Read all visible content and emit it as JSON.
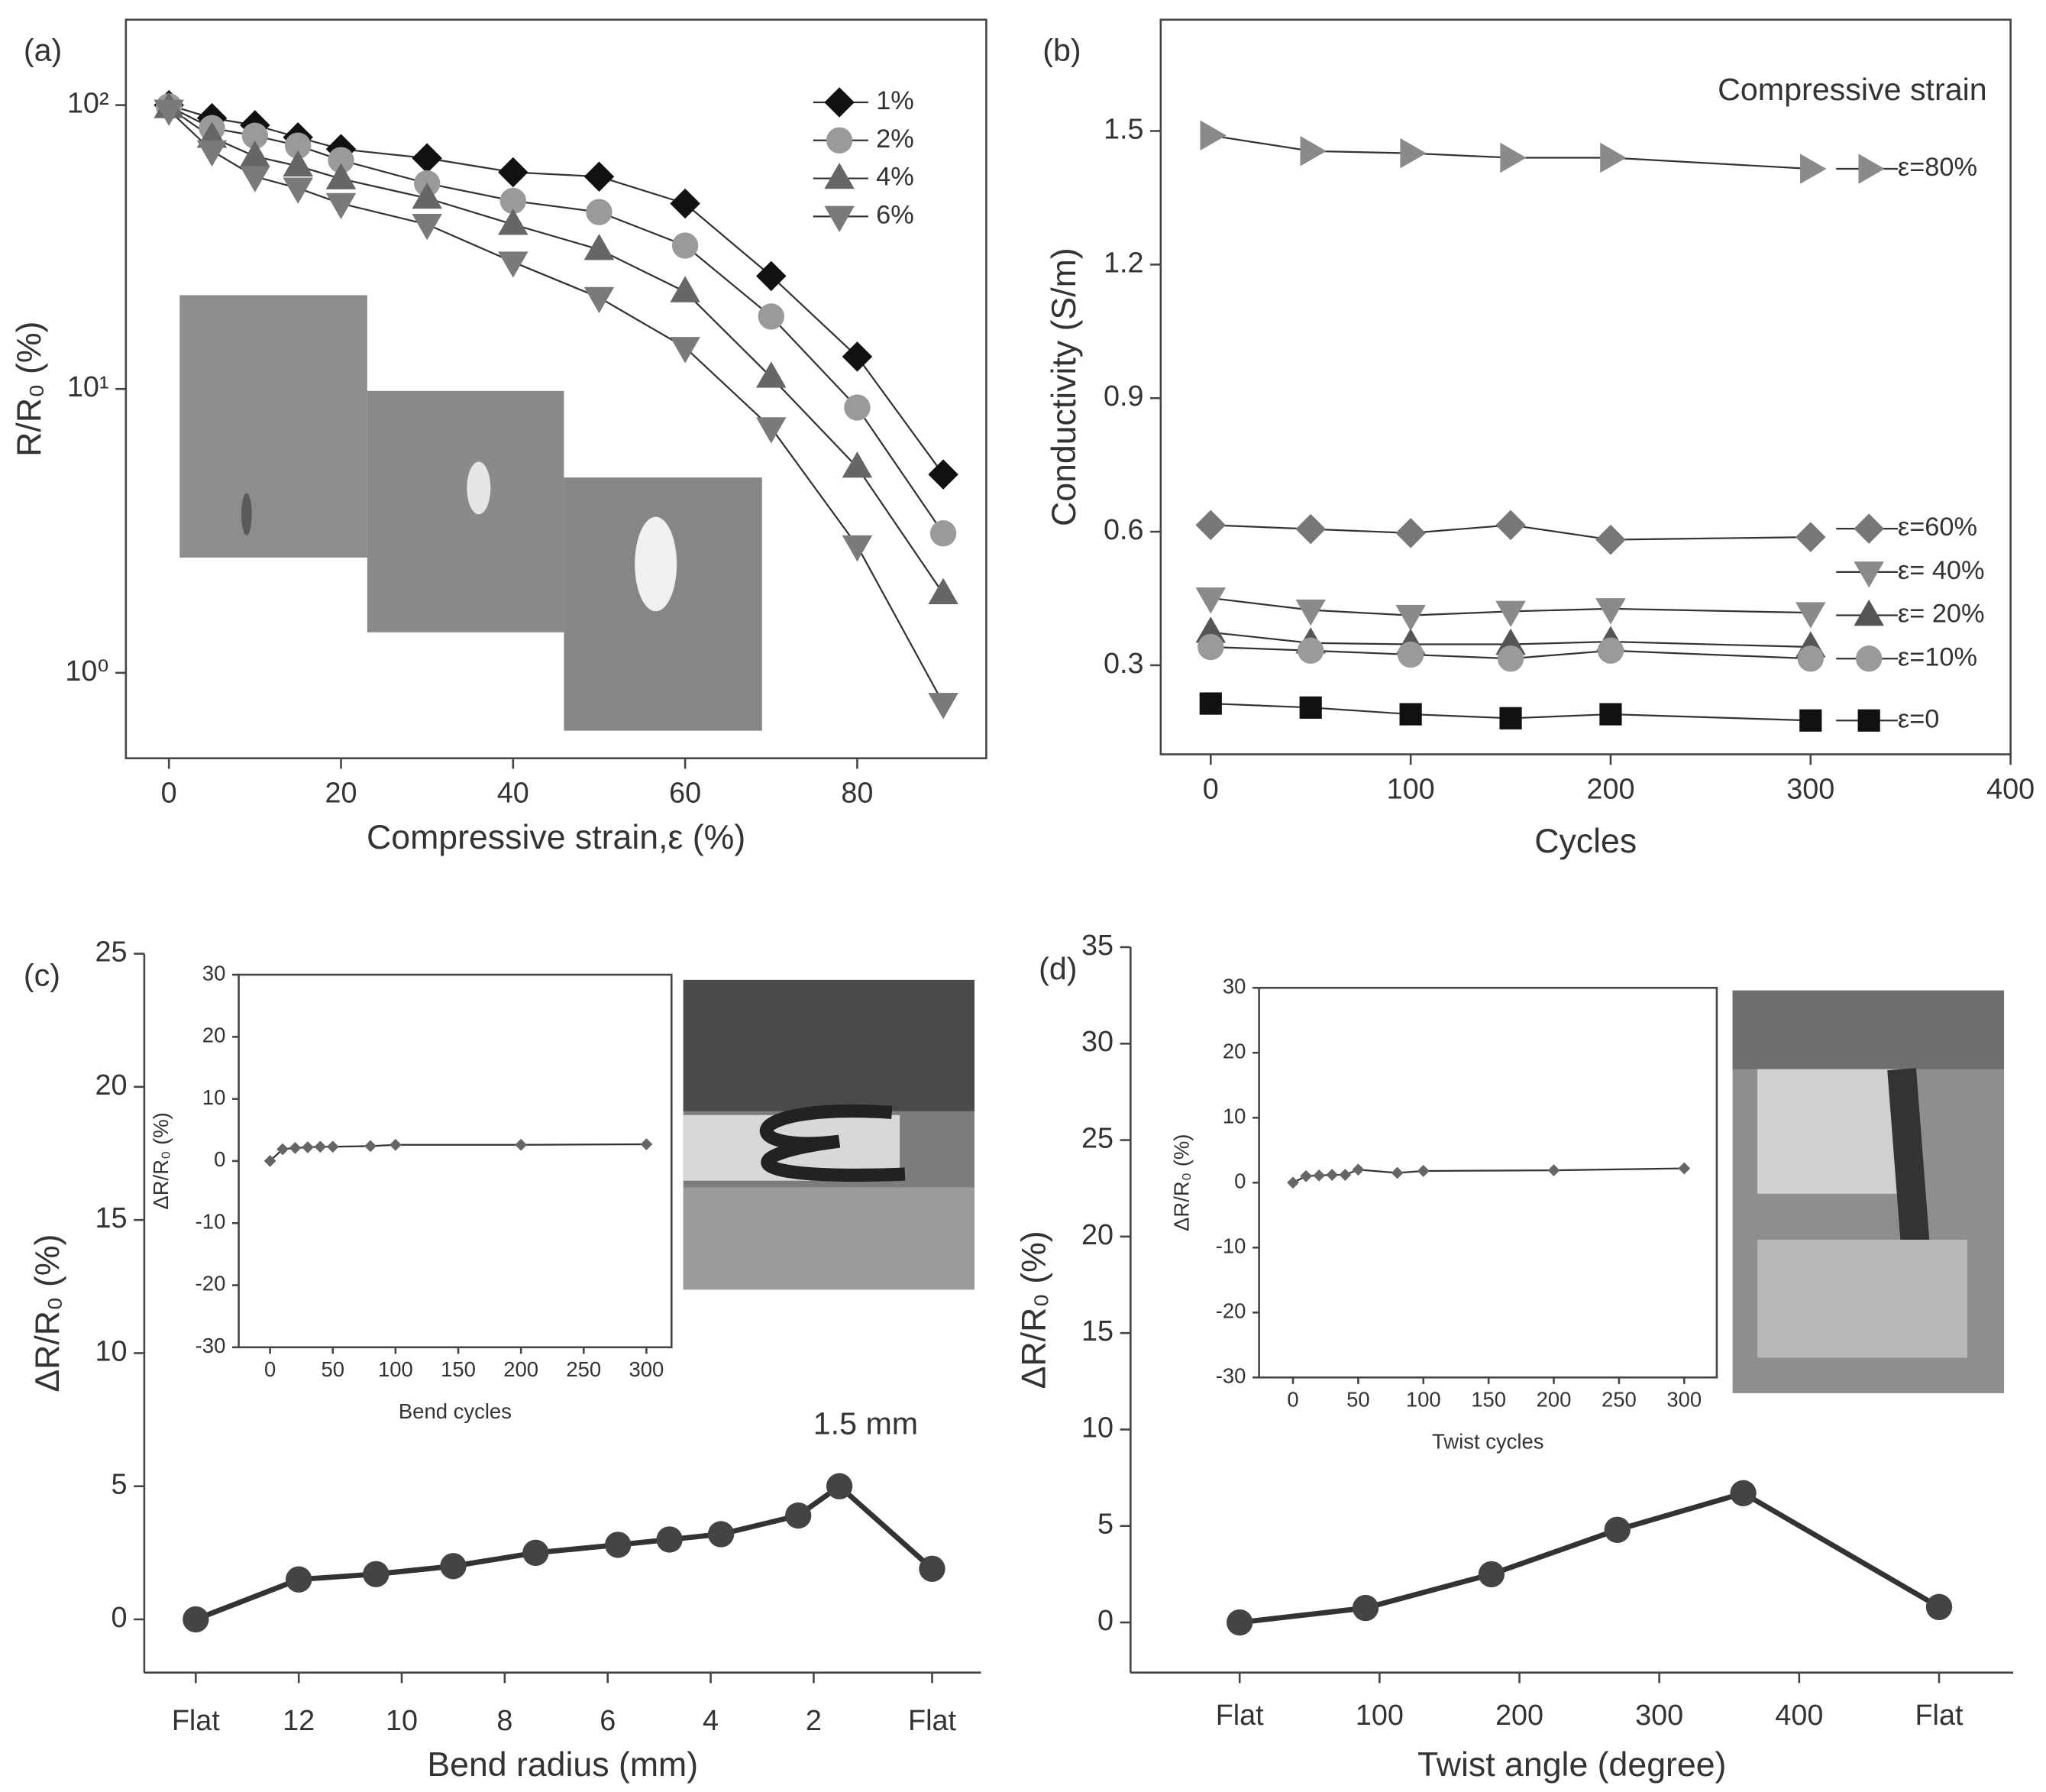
{
  "chart_data": [
    {
      "type": "line",
      "panel": "(a)",
      "x_label": "Compressive strain,ε (%)",
      "y_label": "R/R₀ (%)",
      "log_y": true,
      "xlim": [
        -5,
        95
      ],
      "ylim": [
        0.5,
        200
      ],
      "xticks": [
        0,
        20,
        40,
        60,
        80
      ],
      "yticks": [
        {
          "value": 1,
          "label": "10⁰"
        },
        {
          "value": 10,
          "label": "10¹"
        },
        {
          "value": 100,
          "label": "10²"
        }
      ],
      "x": [
        0,
        5,
        10,
        15,
        20,
        30,
        40,
        50,
        60,
        70,
        80,
        90
      ],
      "legend": "upper right",
      "series": [
        {
          "name": "1%",
          "color": "#111111",
          "marker": "diamond",
          "values": [
            100,
            90,
            85,
            77,
            70,
            65,
            58,
            56,
            45,
            25,
            13,
            5
          ]
        },
        {
          "name": "2%",
          "color": "#9a9a9a",
          "marker": "circle",
          "values": [
            99,
            83,
            78,
            72,
            64,
            53,
            46,
            42,
            32,
            18,
            8.6,
            3.1
          ]
        },
        {
          "name": "4%",
          "color": "#666666",
          "marker": "triangle-up",
          "values": [
            98,
            77,
            66,
            61,
            55,
            47,
            38,
            31,
            22,
            11,
            5.3,
            1.9
          ]
        },
        {
          "name": "6%",
          "color": "#7a7a7a",
          "marker": "triangle-down",
          "values": [
            96,
            69,
            56,
            51,
            45,
            38,
            28,
            21,
            14,
            7.3,
            2.8,
            0.78
          ]
        }
      ]
    },
    {
      "type": "line",
      "panel": "(b)",
      "x_label": "Cycles",
      "y_label": "Conductivity (S/m)",
      "annotation": "Compressive strain",
      "xlim": [
        -25,
        400
      ],
      "ylim": [
        0.1,
        1.75
      ],
      "xticks": [
        0,
        100,
        200,
        300,
        400
      ],
      "yticks": [
        0.3,
        0.6,
        0.9,
        1.2,
        1.5
      ],
      "x": [
        0,
        50,
        100,
        150,
        200,
        300
      ],
      "legend": "right",
      "series": [
        {
          "name": "ε=80%",
          "color": "#8a8a8a",
          "marker": "triangle-right",
          "values": [
            1.49,
            1.455,
            1.45,
            1.44,
            1.44,
            1.415
          ]
        },
        {
          "name": "ε=60%",
          "color": "#777777",
          "marker": "diamond",
          "values": [
            0.615,
            0.606,
            0.597,
            0.615,
            0.582,
            0.588
          ]
        },
        {
          "name": "ε= 40%",
          "color": "#8a8a8a",
          "marker": "triangle-down",
          "values": [
            0.451,
            0.424,
            0.412,
            0.421,
            0.427,
            0.418
          ]
        },
        {
          "name": "ε= 20%",
          "color": "#555555",
          "marker": "triangle-up",
          "values": [
            0.374,
            0.35,
            0.347,
            0.347,
            0.353,
            0.341
          ]
        },
        {
          "name": "ε=10%",
          "color": "#9a9a9a",
          "marker": "circle",
          "values": [
            0.341,
            0.333,
            0.324,
            0.315,
            0.333,
            0.315
          ]
        },
        {
          "name": "ε=0",
          "color": "#111111",
          "marker": "square",
          "values": [
            0.214,
            0.205,
            0.19,
            0.181,
            0.19,
            0.176
          ]
        }
      ]
    },
    {
      "type": "line",
      "panel": "(c)",
      "x_label": "Bend radius (mm)",
      "y_label": "ΔR/R₀ (%)",
      "annotation": "1.5 mm",
      "xlim": [
        15,
        -1.25
      ],
      "ylim": [
        -2,
        25
      ],
      "xticks": [
        {
          "value": 14,
          "label": "Flat"
        },
        12,
        10,
        8,
        6,
        4,
        2,
        {
          "value": -0.3,
          "label": "Flat"
        }
      ],
      "yticks": [
        0,
        5,
        10,
        15,
        20,
        25
      ],
      "x": [
        14,
        12,
        10.5,
        9,
        7.4,
        5.8,
        4.8,
        3.8,
        2.3,
        1.5,
        -0.3
      ],
      "values": [
        0,
        1.5,
        1.7,
        2.0,
        2.5,
        2.8,
        3.0,
        3.2,
        3.9,
        5.0,
        1.9
      ],
      "color": "#444444",
      "marker": "circle"
    },
    {
      "type": "line",
      "x_label": "Bend cycles",
      "y_label": "ΔR/R₀ (%)",
      "xlim": [
        -25,
        320
      ],
      "ylim": [
        -30,
        30
      ],
      "xticks": [
        0,
        50,
        100,
        150,
        200,
        250,
        300
      ],
      "yticks": [
        -30,
        -20,
        -10,
        0,
        10,
        20,
        30
      ],
      "x": [
        0,
        10,
        20,
        30,
        40,
        50,
        80,
        100,
        200,
        300
      ],
      "values": [
        0,
        1.9,
        2.1,
        2.2,
        2.3,
        2.3,
        2.4,
        2.6,
        2.6,
        2.7
      ],
      "color": "#666666",
      "marker": "diamond"
    },
    {
      "type": "line",
      "panel": "(d)",
      "x_label": "Twist angle (degree)",
      "y_label": "ΔR/R₀ (%)",
      "xlim": [
        -78,
        553
      ],
      "ylim": [
        -2.6,
        35
      ],
      "xticks": [
        {
          "value": 0,
          "label": "Flat"
        },
        100,
        200,
        300,
        400,
        {
          "value": 500,
          "label": "Flat"
        }
      ],
      "yticks": [
        0,
        5,
        10,
        15,
        20,
        25,
        30,
        35
      ],
      "x": [
        0,
        90,
        180,
        270,
        360,
        500
      ],
      "values": [
        0,
        0.75,
        2.5,
        4.8,
        6.7,
        0.8
      ],
      "color": "#444444",
      "marker": "circle"
    },
    {
      "type": "line",
      "x_label": "Twist cycles",
      "y_label": "ΔR/R₀ (%)",
      "xlim": [
        -26,
        325
      ],
      "ylim": [
        -30,
        30
      ],
      "xticks": [
        0,
        50,
        100,
        150,
        200,
        250,
        300
      ],
      "yticks": [
        -30,
        -20,
        -10,
        0,
        10,
        20,
        30
      ],
      "x": [
        0,
        10,
        20,
        30,
        40,
        50,
        80,
        100,
        200,
        300
      ],
      "values": [
        0,
        1,
        1.1,
        1.2,
        1.2,
        2,
        1.5,
        1.8,
        1.9,
        2.2
      ],
      "color": "#666666",
      "marker": "diamond"
    }
  ]
}
